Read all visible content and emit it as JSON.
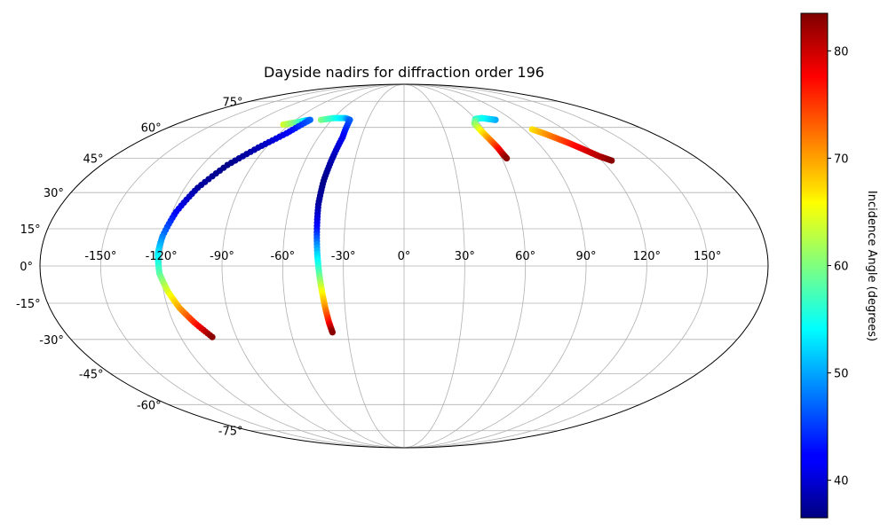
{
  "chart_data": {
    "type": "scatter",
    "projection": "mollweide",
    "title": "Dayside nadirs for diffraction order 196",
    "grid": true,
    "longitude_ticks": [
      -150,
      -120,
      -90,
      -60,
      -30,
      0,
      30,
      60,
      90,
      120,
      150
    ],
    "longitude_tick_labels": [
      "-150°",
      "-120°",
      "-90°",
      "-60°",
      "-30°",
      "0°",
      "30°",
      "60°",
      "90°",
      "120°",
      "150°"
    ],
    "latitude_ticks": [
      75,
      60,
      45,
      30,
      15,
      0,
      -15,
      -30,
      -45,
      -60,
      -75
    ],
    "latitude_tick_labels": [
      "75°",
      "60°",
      "45°",
      "30°",
      "15°",
      "0°",
      "-15°",
      "-30°",
      "-45°",
      "-60°",
      "-75°"
    ],
    "colorbar": {
      "label": "Incidence Angle (degrees)",
      "colormap": "jet",
      "range": [
        36.5,
        83.5
      ],
      "ticks": [
        40,
        50,
        60,
        70,
        80
      ],
      "tick_labels": [
        "40",
        "50",
        "60",
        "70",
        "80"
      ]
    },
    "series": [
      {
        "points": [
          {
            "lon": -95,
            "lat": 61.5,
            "inc": 64
          },
          {
            "lon": -88,
            "lat": 62.5,
            "inc": 60
          },
          {
            "lon": -82,
            "lat": 63.5,
            "inc": 55
          },
          {
            "lon": -78,
            "lat": 64,
            "inc": 47
          },
          {
            "lon": -85,
            "lat": 57,
            "inc": 42
          },
          {
            "lon": -95,
            "lat": 50,
            "inc": 39
          },
          {
            "lon": -105,
            "lat": 42,
            "inc": 37
          },
          {
            "lon": -113,
            "lat": 32,
            "inc": 38
          },
          {
            "lon": -118,
            "lat": 22,
            "inc": 42
          },
          {
            "lon": -121,
            "lat": 12,
            "inc": 48
          },
          {
            "lon": -122,
            "lat": 5,
            "inc": 53
          },
          {
            "lon": -121,
            "lat": -3,
            "inc": 58
          },
          {
            "lon": -118,
            "lat": -10,
            "inc": 64
          },
          {
            "lon": -114,
            "lat": -17,
            "inc": 70
          },
          {
            "lon": -109,
            "lat": -23,
            "inc": 76
          },
          {
            "lon": -103,
            "lat": -29,
            "inc": 83
          }
        ]
      },
      {
        "points": [
          {
            "lon": -69,
            "lat": 64,
            "inc": 60
          },
          {
            "lon": -60,
            "lat": 65,
            "inc": 56
          },
          {
            "lon": -50,
            "lat": 65,
            "inc": 52
          },
          {
            "lon": -45,
            "lat": 64,
            "inc": 47
          },
          {
            "lon": -43,
            "lat": 55,
            "inc": 42
          },
          {
            "lon": -44,
            "lat": 45,
            "inc": 39
          },
          {
            "lon": -45,
            "lat": 35,
            "inc": 37
          },
          {
            "lon": -45,
            "lat": 25,
            "inc": 38
          },
          {
            "lon": -44,
            "lat": 15,
            "inc": 43
          },
          {
            "lon": -43,
            "lat": 5,
            "inc": 52
          },
          {
            "lon": -42,
            "lat": -3,
            "inc": 58
          },
          {
            "lon": -41,
            "lat": -10,
            "inc": 65
          },
          {
            "lon": -40,
            "lat": -17,
            "inc": 71
          },
          {
            "lon": -39,
            "lat": -23,
            "inc": 77
          },
          {
            "lon": -38,
            "lat": -27,
            "inc": 83
          }
        ]
      },
      {
        "points": [
          {
            "lon": 76,
            "lat": 64,
            "inc": 50
          },
          {
            "lon": 71,
            "lat": 64.5,
            "inc": 52
          },
          {
            "lon": 66,
            "lat": 65,
            "inc": 54
          },
          {
            "lon": 60,
            "lat": 64.5,
            "inc": 56
          },
          {
            "lon": 56,
            "lat": 62,
            "inc": 60
          },
          {
            "lon": 57,
            "lat": 58,
            "inc": 66
          },
          {
            "lon": 59,
            "lat": 54,
            "inc": 71
          },
          {
            "lon": 61,
            "lat": 50,
            "inc": 76
          },
          {
            "lon": 62,
            "lat": 47,
            "inc": 80
          },
          {
            "lon": 63,
            "lat": 45,
            "inc": 83
          }
        ]
      },
      {
        "points": [
          {
            "lon": 96,
            "lat": 59,
            "inc": 67
          },
          {
            "lon": 101,
            "lat": 57,
            "inc": 70
          },
          {
            "lon": 106,
            "lat": 54.5,
            "inc": 73
          },
          {
            "lon": 111,
            "lat": 52,
            "inc": 76
          },
          {
            "lon": 116,
            "lat": 49,
            "inc": 79
          },
          {
            "lon": 121,
            "lat": 46,
            "inc": 81
          },
          {
            "lon": 126,
            "lat": 44,
            "inc": 83
          }
        ]
      }
    ]
  }
}
